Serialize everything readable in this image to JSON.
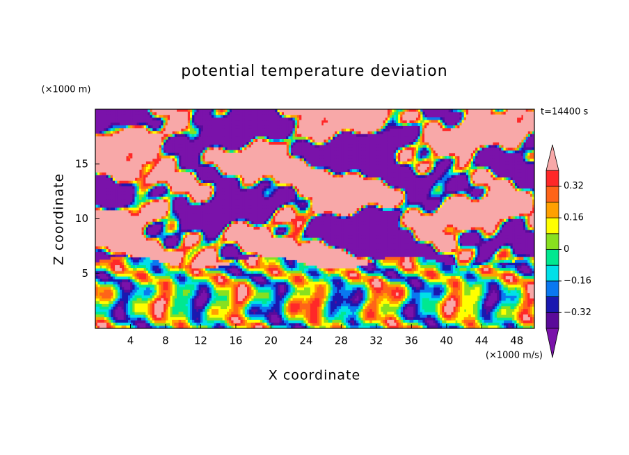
{
  "chart_data": {
    "type": "contour",
    "title": "potential temperature deviation",
    "x_label": "X coordinate",
    "y_label": "Z coordinate",
    "x_unit": "(×1000 m/s)",
    "y_unit": "(×1000 m)",
    "annotation": "t=14400 s",
    "xlim": [
      0,
      50
    ],
    "xticks": [
      4,
      8,
      12,
      16,
      20,
      24,
      28,
      32,
      36,
      40,
      44,
      48
    ],
    "ylim": [
      0,
      20
    ],
    "yticks": [
      5,
      10,
      15
    ],
    "colorbar": {
      "levels": [
        -0.4,
        -0.32,
        -0.24,
        -0.16,
        -0.08,
        0,
        0.08,
        0.16,
        0.24,
        0.32,
        0.4
      ],
      "ticks": [
        {
          "value": -0.32,
          "label": "−0.32"
        },
        {
          "value": -0.16,
          "label": "−0.16"
        },
        0,
        0.16,
        0.32
      ],
      "colors": [
        "#7a12aa",
        "#5a0a9a",
        "#1a18b0",
        "#0a78f0",
        "#00e0e8",
        "#00e890",
        "#88e020",
        "#ffff00",
        "#ffa000",
        "#ff6418",
        "#ff2828",
        "#f8a8a8"
      ]
    }
  }
}
